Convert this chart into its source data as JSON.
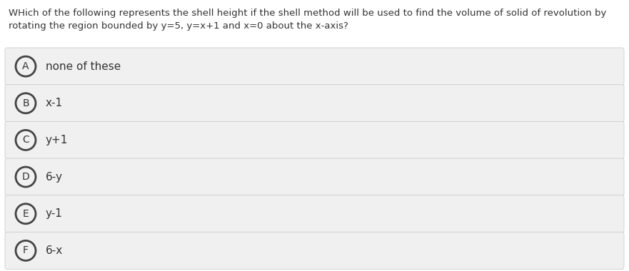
{
  "question_line1": "WHich of the following represents the shell height if the shell method will be used to find the volume of solid of revolution by",
  "question_line2": "rotating the region bounded by y=5, y=x+1 and x=0 about the x-axis?",
  "options": [
    {
      "letter": "A",
      "text": "none of these"
    },
    {
      "letter": "B",
      "text": "x-1"
    },
    {
      "letter": "C",
      "text": "y+1"
    },
    {
      "letter": "D",
      "text": "6-y"
    },
    {
      "letter": "E",
      "text": "y-1"
    },
    {
      "letter": "F",
      "text": "6-x"
    }
  ],
  "bg_color": "#ffffff",
  "option_bg_color": "#f0f0f0",
  "option_border_color": "#cccccc",
  "text_color": "#333333",
  "circle_edge_color": "#444444",
  "circle_face_color": "#f0f0f0",
  "question_fontsize": 9.5,
  "option_fontsize": 11.0,
  "letter_fontsize": 10.0,
  "fig_width": 8.81,
  "fig_height": 3.8,
  "dpi": 100
}
